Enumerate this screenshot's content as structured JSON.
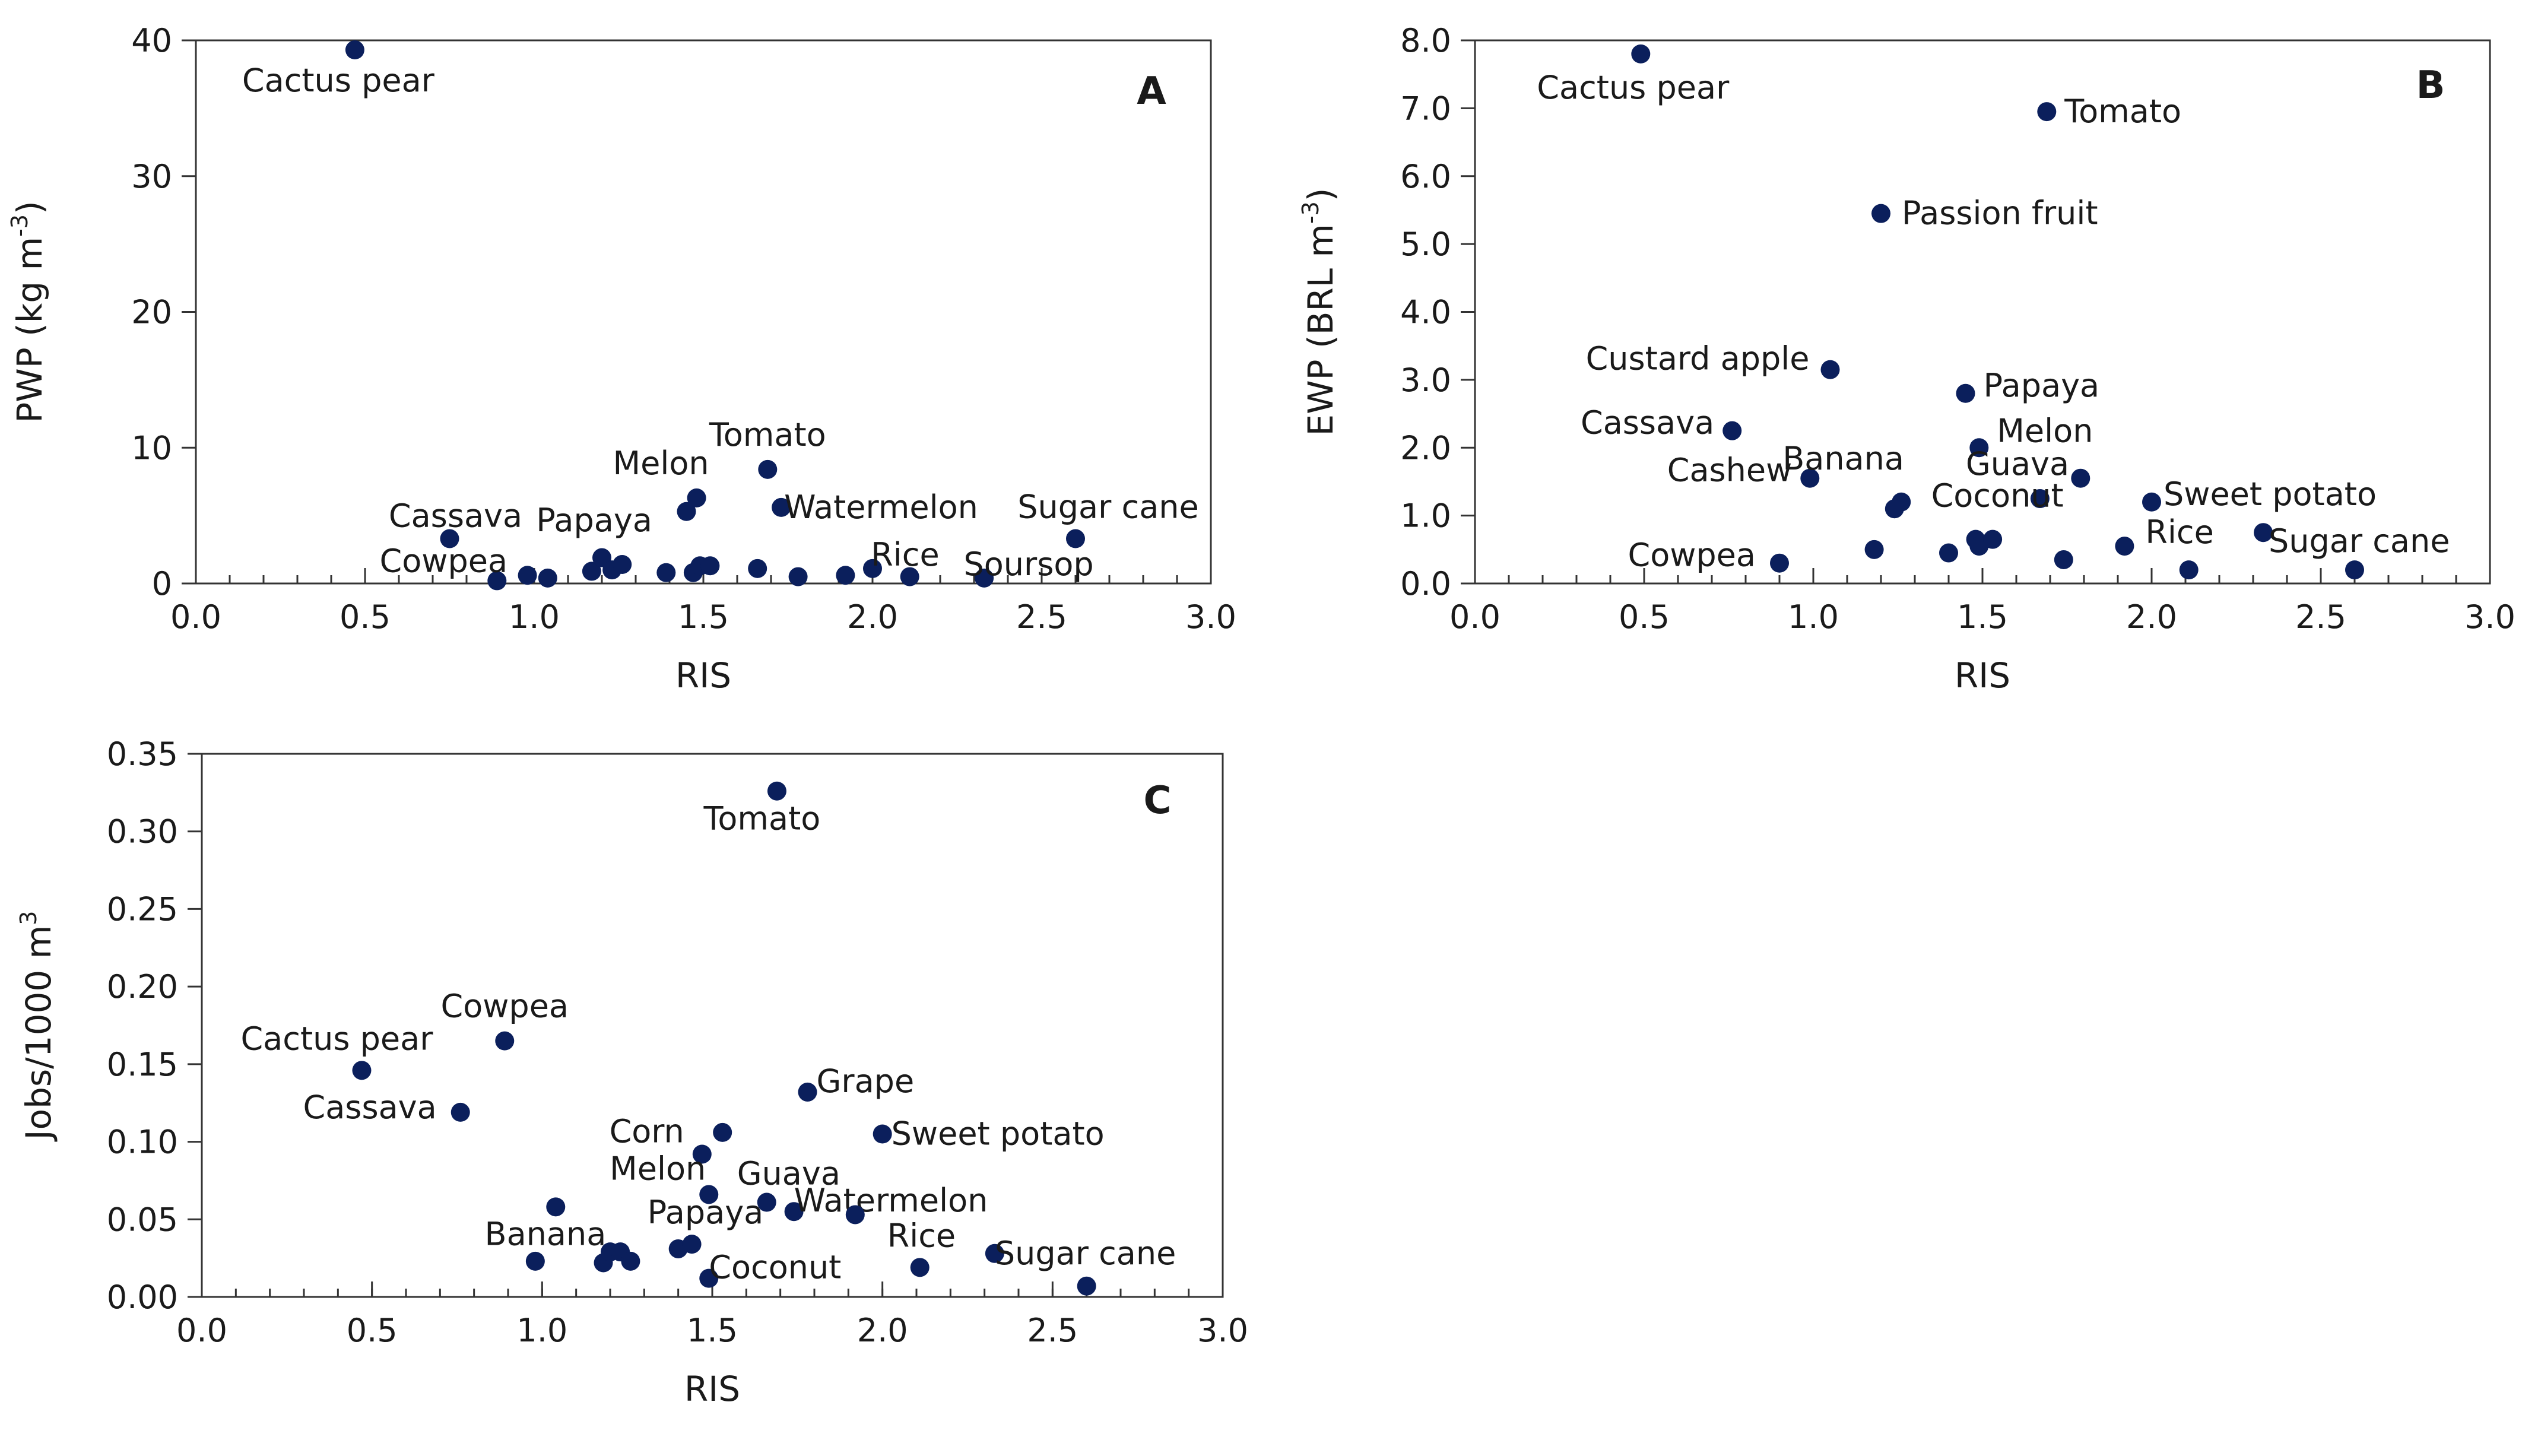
{
  "chart_data": [
    {
      "type": "scatter",
      "panel": "A",
      "xlabel": "RIS",
      "ylabel_base": "PWP (kg m",
      "ylabel_sup": "-3",
      "ylabel_end": ")",
      "xlim": [
        0,
        3
      ],
      "ylim": [
        0,
        40
      ],
      "xticks": [
        0,
        0.5,
        1,
        1.5,
        2,
        2.5,
        3
      ],
      "xtick_labels": [
        "0.0",
        "0.5",
        "1.0",
        "1.5",
        "2.0",
        "2.5",
        "3.0"
      ],
      "yticks": [
        0,
        10,
        20,
        30,
        40
      ],
      "ytick_labels": [
        "0",
        "10",
        "20",
        "30",
        "40"
      ],
      "points": [
        {
          "x": 0.47,
          "y": 39.3,
          "label": "Cactus pear"
        },
        {
          "x": 0.75,
          "y": 3.3,
          "label": "Cassava"
        },
        {
          "x": 0.89,
          "y": 0.2,
          "label": "Cowpea"
        },
        {
          "x": 0.98,
          "y": 0.6
        },
        {
          "x": 1.04,
          "y": 0.4
        },
        {
          "x": 1.17,
          "y": 0.9
        },
        {
          "x": 1.2,
          "y": 1.9
        },
        {
          "x": 1.23,
          "y": 1.0,
          "label": "Papaya"
        },
        {
          "x": 1.26,
          "y": 1.4
        },
        {
          "x": 1.39,
          "y": 0.8
        },
        {
          "x": 1.45,
          "y": 5.3
        },
        {
          "x": 1.48,
          "y": 6.3,
          "label": "Melon"
        },
        {
          "x": 1.47,
          "y": 0.8
        },
        {
          "x": 1.49,
          "y": 1.3
        },
        {
          "x": 1.52,
          "y": 1.3
        },
        {
          "x": 1.66,
          "y": 1.1
        },
        {
          "x": 1.69,
          "y": 8.4,
          "label": "Tomato"
        },
        {
          "x": 1.73,
          "y": 5.6,
          "label": "Watermelon"
        },
        {
          "x": 1.78,
          "y": 0.5
        },
        {
          "x": 1.92,
          "y": 0.6
        },
        {
          "x": 2.0,
          "y": 1.1,
          "label": "Rice"
        },
        {
          "x": 2.11,
          "y": 0.5
        },
        {
          "x": 2.33,
          "y": 0.4,
          "label": "Soursop"
        },
        {
          "x": 2.6,
          "y": 3.3,
          "label": "Sugar cane"
        }
      ]
    },
    {
      "type": "scatter",
      "panel": "B",
      "xlabel": "RIS",
      "ylabel_base": "EWP (BRL m",
      "ylabel_sup": "-3",
      "ylabel_end": ")",
      "xlim": [
        0,
        3
      ],
      "ylim": [
        0,
        8
      ],
      "xticks": [
        0,
        0.5,
        1,
        1.5,
        2,
        2.5,
        3
      ],
      "xtick_labels": [
        "0.0",
        "0.5",
        "1.0",
        "1.5",
        "2.0",
        "2.5",
        "3.0"
      ],
      "yticks": [
        0,
        1,
        2,
        3,
        4,
        5,
        6,
        7,
        8
      ],
      "ytick_labels": [
        "0.0",
        "1.0",
        "2.0",
        "3.0",
        "4.0",
        "5.0",
        "6.0",
        "7.0",
        "8.0"
      ],
      "points": [
        {
          "x": 0.49,
          "y": 7.8,
          "label": "Cactus pear"
        },
        {
          "x": 1.69,
          "y": 6.95,
          "label": "Tomato"
        },
        {
          "x": 1.2,
          "y": 5.45,
          "label": "Passion fruit"
        },
        {
          "x": 1.05,
          "y": 3.15,
          "label": "Custard apple"
        },
        {
          "x": 1.45,
          "y": 2.8,
          "label": "Papaya"
        },
        {
          "x": 0.76,
          "y": 2.25,
          "label": "Cassava"
        },
        {
          "x": 1.49,
          "y": 2.0,
          "label": "Melon"
        },
        {
          "x": 0.99,
          "y": 1.55,
          "label": "Cashew"
        },
        {
          "x": 1.26,
          "y": 1.2,
          "label": "Banana"
        },
        {
          "x": 1.24,
          "y": 1.1
        },
        {
          "x": 1.67,
          "y": 1.25,
          "label": "Guava"
        },
        {
          "x": 1.79,
          "y": 1.55
        },
        {
          "x": 2.0,
          "y": 1.2,
          "label": "Sweet potato"
        },
        {
          "x": 1.48,
          "y": 0.65,
          "label": "Coconut"
        },
        {
          "x": 1.49,
          "y": 0.55
        },
        {
          "x": 1.53,
          "y": 0.65
        },
        {
          "x": 1.4,
          "y": 0.45
        },
        {
          "x": 1.18,
          "y": 0.5
        },
        {
          "x": 0.9,
          "y": 0.3,
          "label": "Cowpea"
        },
        {
          "x": 1.74,
          "y": 0.35
        },
        {
          "x": 1.92,
          "y": 0.55,
          "label": "Rice"
        },
        {
          "x": 2.11,
          "y": 0.2
        },
        {
          "x": 2.33,
          "y": 0.75
        },
        {
          "x": 2.6,
          "y": 0.2,
          "label": "Sugar cane"
        }
      ]
    },
    {
      "type": "scatter",
      "panel": "C",
      "xlabel": "RIS",
      "ylabel_base": "Jobs/1000 m",
      "ylabel_sup": "3",
      "ylabel_end": "",
      "xlim": [
        0,
        3
      ],
      "ylim": [
        0,
        0.35
      ],
      "xticks": [
        0,
        0.5,
        1,
        1.5,
        2,
        2.5,
        3
      ],
      "xtick_labels": [
        "0.0",
        "0.5",
        "1.0",
        "1.5",
        "2.0",
        "2.5",
        "3.0"
      ],
      "yticks": [
        0,
        0.05,
        0.1,
        0.15,
        0.2,
        0.25,
        0.3,
        0.35
      ],
      "ytick_labels": [
        "0.00",
        "0.05",
        "0.10",
        "0.15",
        "0.20",
        "0.25",
        "0.30",
        "0.35"
      ],
      "points": [
        {
          "x": 1.69,
          "y": 0.326,
          "label": "Tomato"
        },
        {
          "x": 0.89,
          "y": 0.165,
          "label": "Cowpea"
        },
        {
          "x": 0.47,
          "y": 0.146,
          "label": "Cactus pear"
        },
        {
          "x": 0.76,
          "y": 0.119,
          "label": "Cassava"
        },
        {
          "x": 1.78,
          "y": 0.132,
          "label": "Grape"
        },
        {
          "x": 2.0,
          "y": 0.105,
          "label": "Sweet potato"
        },
        {
          "x": 1.53,
          "y": 0.106
        },
        {
          "x": 1.47,
          "y": 0.092,
          "label": "Corn"
        },
        {
          "x": 1.49,
          "y": 0.066,
          "label": "Melon"
        },
        {
          "x": 1.66,
          "y": 0.061,
          "label": "Guava"
        },
        {
          "x": 1.74,
          "y": 0.055,
          "label": "Watermelon"
        },
        {
          "x": 1.92,
          "y": 0.053
        },
        {
          "x": 1.04,
          "y": 0.058
        },
        {
          "x": 0.98,
          "y": 0.023
        },
        {
          "x": 1.18,
          "y": 0.022,
          "label": "Banana"
        },
        {
          "x": 1.2,
          "y": 0.029
        },
        {
          "x": 1.23,
          "y": 0.029
        },
        {
          "x": 1.26,
          "y": 0.023
        },
        {
          "x": 1.4,
          "y": 0.031
        },
        {
          "x": 1.44,
          "y": 0.034,
          "label": "Papaya"
        },
        {
          "x": 1.49,
          "y": 0.012,
          "label": "Coconut"
        },
        {
          "x": 2.11,
          "y": 0.019,
          "label": "Rice"
        },
        {
          "x": 2.33,
          "y": 0.028,
          "label": "Sugar cane"
        },
        {
          "x": 2.6,
          "y": 0.007
        }
      ]
    }
  ]
}
